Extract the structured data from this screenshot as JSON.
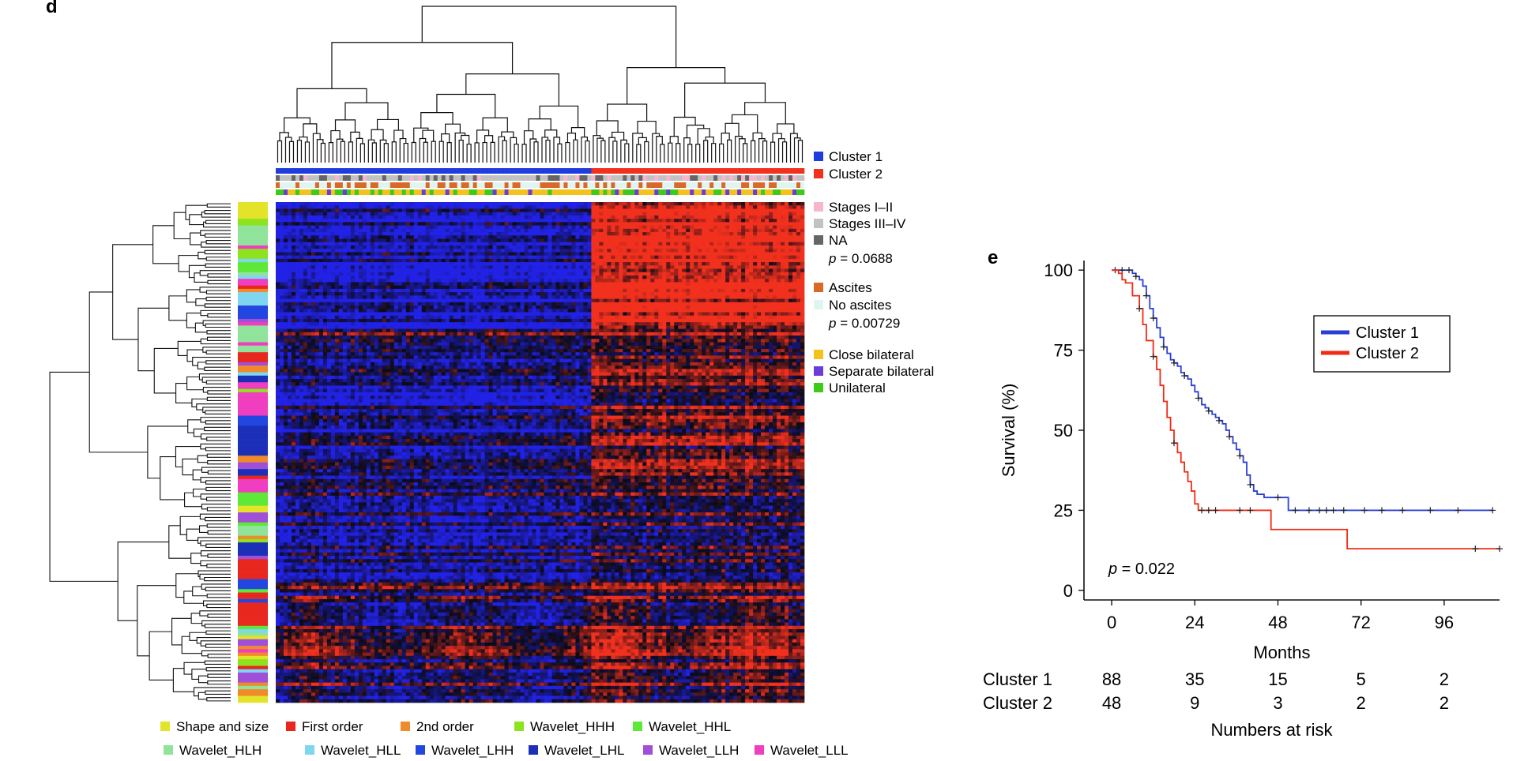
{
  "panels": {
    "d": "d",
    "e": "e"
  },
  "cluster_legend": [
    {
      "label": "Cluster 1",
      "color": "#1f3ddf"
    },
    {
      "label": "Cluster 2",
      "color": "#f2301e"
    }
  ],
  "stage_legend": {
    "items": [
      {
        "label": "Stages I–II",
        "color": "#f7b6cf"
      },
      {
        "label": "Stages III–IV",
        "color": "#c2c2c2"
      },
      {
        "label": "NA",
        "color": "#666666"
      }
    ],
    "p_label": "p",
    "p_value": " = 0.0688"
  },
  "ascites_legend": {
    "items": [
      {
        "label": "Ascites",
        "color": "#d9692a"
      },
      {
        "label": "No ascites",
        "color": "#dff5f2"
      }
    ],
    "p_label": "p",
    "p_value": " = 0.00729"
  },
  "bilateral_legend": {
    "items": [
      {
        "label": "Close bilateral",
        "color": "#f4c21c"
      },
      {
        "label": "Separate bilateral",
        "color": "#6a3cd8"
      },
      {
        "label": "Unilateral",
        "color": "#3ccb1a"
      }
    ]
  },
  "feature_legend": [
    {
      "label": "Shape and size",
      "color": "#e3e32a"
    },
    {
      "label": "First order",
      "color": "#e8271f"
    },
    {
      "label": "2nd order",
      "color": "#f08a2a"
    },
    {
      "label": "Wavelet_HHH",
      "color": "#8ee21e"
    },
    {
      "label": "Wavelet_HHL",
      "color": "#5ee838"
    },
    {
      "label": "Wavelet_HLH",
      "color": "#8fe39a"
    },
    {
      "label": "Wavelet_HLL",
      "color": "#7fd6f0"
    },
    {
      "label": "Wavelet_LHH",
      "color": "#2246e0"
    },
    {
      "label": "Wavelet_LHL",
      "color": "#1c2fb8"
    },
    {
      "label": "Wavelet_LLH",
      "color": "#a050d8"
    },
    {
      "label": "Wavelet_LLL",
      "color": "#f03ec0"
    }
  ],
  "heatmap_colors": {
    "low": "#2222e6",
    "mid": "#0b0b18",
    "high": "#f2301e"
  },
  "chart_data": {
    "type": "line",
    "subtype": "kaplan-meier",
    "xlabel": "Months",
    "ylabel": "Survival (%)",
    "xlim": [
      -8,
      112
    ],
    "ylim": [
      -3,
      103
    ],
    "xticks": [
      0,
      24,
      48,
      72,
      96
    ],
    "yticks": [
      0,
      25,
      50,
      75,
      100
    ],
    "legend_position": "top-right",
    "annotation": {
      "p_label": "p",
      "p_value": " = 0.022"
    },
    "series": [
      {
        "name": "Cluster 1",
        "color": "#2a3fd6",
        "steps": [
          [
            0,
            100
          ],
          [
            2,
            100
          ],
          [
            4,
            100
          ],
          [
            5,
            100
          ],
          [
            6,
            99
          ],
          [
            7,
            98
          ],
          [
            8,
            97
          ],
          [
            9,
            95
          ],
          [
            10,
            92
          ],
          [
            11,
            88
          ],
          [
            12,
            85
          ],
          [
            13,
            82
          ],
          [
            14,
            79
          ],
          [
            15,
            76
          ],
          [
            16,
            74
          ],
          [
            17,
            72
          ],
          [
            18,
            71
          ],
          [
            19,
            70
          ],
          [
            20,
            68
          ],
          [
            21,
            67
          ],
          [
            22,
            66
          ],
          [
            23,
            64
          ],
          [
            24,
            62
          ],
          [
            25,
            60
          ],
          [
            26,
            58
          ],
          [
            27,
            57
          ],
          [
            28,
            56
          ],
          [
            29,
            55
          ],
          [
            30,
            54
          ],
          [
            31,
            53
          ],
          [
            32,
            52
          ],
          [
            33,
            50
          ],
          [
            34,
            48
          ],
          [
            35,
            46
          ],
          [
            36,
            44
          ],
          [
            37,
            42
          ],
          [
            38,
            40
          ],
          [
            39,
            36
          ],
          [
            40,
            33
          ],
          [
            41,
            31
          ],
          [
            42,
            30
          ],
          [
            44,
            29
          ],
          [
            48,
            29
          ],
          [
            51,
            25
          ],
          [
            110,
            25
          ]
        ],
        "censor_x": [
          1,
          3,
          5,
          7,
          10,
          12,
          15,
          18,
          21,
          25,
          28,
          31,
          34,
          37,
          40,
          48,
          53,
          57,
          60,
          62,
          64,
          67,
          73,
          78,
          84,
          92,
          100,
          110
        ]
      },
      {
        "name": "Cluster 2",
        "color": "#f02a15",
        "steps": [
          [
            0,
            100
          ],
          [
            2,
            99
          ],
          [
            3,
            97
          ],
          [
            4,
            96
          ],
          [
            6,
            92
          ],
          [
            8,
            88
          ],
          [
            9,
            83
          ],
          [
            10,
            78
          ],
          [
            12,
            73
          ],
          [
            13,
            69
          ],
          [
            14,
            64
          ],
          [
            15,
            59
          ],
          [
            16,
            54
          ],
          [
            17,
            50
          ],
          [
            18,
            46
          ],
          [
            19,
            43
          ],
          [
            20,
            40
          ],
          [
            21,
            37
          ],
          [
            22,
            34
          ],
          [
            23,
            31
          ],
          [
            24,
            27
          ],
          [
            25,
            25
          ],
          [
            45,
            25
          ],
          [
            46,
            19
          ],
          [
            55,
            19
          ],
          [
            67,
            19
          ],
          [
            68,
            13
          ],
          [
            112,
            13
          ]
        ],
        "censor_x": [
          8,
          12,
          18,
          26,
          28,
          30,
          37,
          40,
          105,
          112
        ]
      }
    ],
    "risk_table": {
      "title": "Numbers at risk",
      "times": [
        0,
        24,
        48,
        72,
        96
      ],
      "rows": [
        {
          "label": "Cluster 1",
          "values": [
            88,
            35,
            15,
            5,
            2
          ]
        },
        {
          "label": "Cluster 2",
          "values": [
            48,
            9,
            3,
            2,
            2
          ]
        }
      ]
    }
  }
}
